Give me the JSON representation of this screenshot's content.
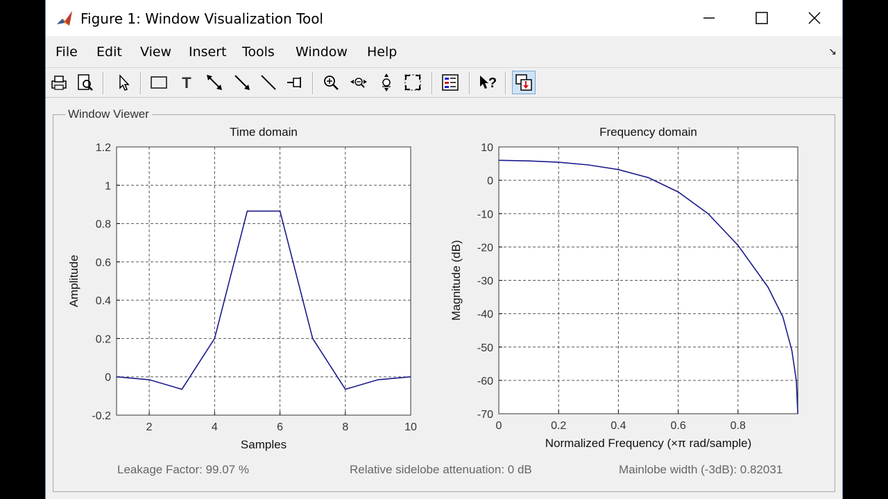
{
  "window": {
    "title": "Figure 1: Window Visualization Tool",
    "controls": {
      "minimize_icon": "minimize-icon",
      "maximize_icon": "maximize-icon",
      "close_icon": "close-icon"
    }
  },
  "menu": {
    "items": [
      {
        "label": "File"
      },
      {
        "label": "Edit"
      },
      {
        "label": "View"
      },
      {
        "label": "Insert"
      },
      {
        "label": "Tools"
      },
      {
        "label": "Window"
      },
      {
        "label": "Help"
      }
    ],
    "dock_arrow": "↘"
  },
  "toolbar": {
    "buttons": [
      "print-icon",
      "print-preview-icon",
      "select-arrow-icon",
      "rectangle-icon",
      "text-icon",
      "double-arrow-icon",
      "arrow-icon",
      "line-icon",
      "pin-icon",
      "zoom-in-icon",
      "zoom-out-icon",
      "pan-icon",
      "fit-icon",
      "legend-icon",
      "whats-this-icon",
      "dock-icon"
    ]
  },
  "viewer": {
    "title": "Window Viewer"
  },
  "status": {
    "leakage": "Leakage Factor: 99.07 %",
    "sidelobe": "Relative sidelobe attenuation: 0 dB",
    "mainlobe": "Mainlobe width (-3dB): 0.82031"
  },
  "colors": {
    "line": "#1a1a8c",
    "background": "#f0f0f0",
    "accent": "#6b93c4"
  },
  "chart_data": [
    {
      "type": "line",
      "title": "Time domain",
      "xlabel": "Samples",
      "ylabel": "Amplitude",
      "xlim": [
        1,
        10
      ],
      "ylim": [
        -0.2,
        1.2
      ],
      "xticks": [
        2,
        4,
        6,
        8,
        10
      ],
      "yticks": [
        -0.2,
        0,
        0.2,
        0.4,
        0.6,
        0.8,
        1,
        1.2
      ],
      "grid": true,
      "x": [
        1,
        2,
        3,
        4,
        5,
        6,
        7,
        8,
        9,
        10
      ],
      "y": [
        0,
        -0.015,
        -0.065,
        0.2,
        0.865,
        0.865,
        0.2,
        -0.065,
        -0.015,
        0
      ]
    },
    {
      "type": "line",
      "title": "Frequency domain",
      "xlabel": "Normalized Frequency  (×π rad/sample)",
      "ylabel": "Magnitude (dB)",
      "xlim": [
        0,
        1
      ],
      "ylim": [
        -70,
        10
      ],
      "xticks": [
        0,
        0.2,
        0.4,
        0.6,
        0.8
      ],
      "yticks": [
        -70,
        -60,
        -50,
        -40,
        -30,
        -20,
        -10,
        0,
        10
      ],
      "grid": true,
      "x": [
        0,
        0.1,
        0.2,
        0.3,
        0.4,
        0.5,
        0.6,
        0.7,
        0.8,
        0.9,
        0.95,
        0.98,
        0.995,
        1.0
      ],
      "y": [
        6,
        5.8,
        5.4,
        4.6,
        3.2,
        0.8,
        -3.5,
        -10,
        -19.5,
        -32,
        -41,
        -51,
        -60,
        -70
      ]
    }
  ]
}
